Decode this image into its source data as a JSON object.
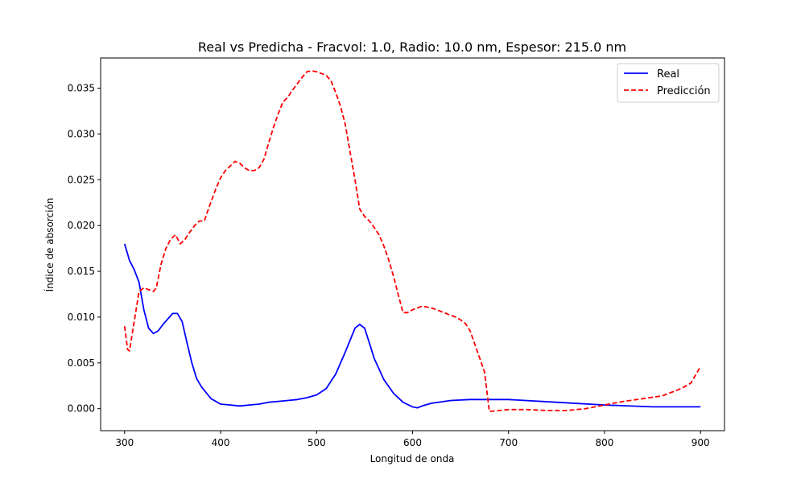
{
  "chart_data": {
    "type": "line",
    "title": "Real vs Predicha - Fracvol: 1.0, Radio: 10.0 nm, Espesor: 215.0 nm",
    "xlabel": "Longitud de onda",
    "ylabel": "Índice de absorción",
    "xlim": [
      275,
      925
    ],
    "ylim": [
      -0.0024,
      0.0383
    ],
    "xticks": [
      300,
      400,
      500,
      600,
      700,
      800,
      900
    ],
    "yticks": [
      0.0,
      0.005,
      0.01,
      0.015,
      0.02,
      0.025,
      0.03,
      0.035
    ],
    "xtick_labels": [
      "300",
      "400",
      "500",
      "600",
      "700",
      "800",
      "900"
    ],
    "ytick_labels": [
      "0.000",
      "0.005",
      "0.010",
      "0.015",
      "0.020",
      "0.025",
      "0.030",
      "0.035"
    ],
    "grid": false,
    "legend_position": "top-right",
    "series": [
      {
        "name": "Real",
        "color": "#0000ff",
        "style": "solid",
        "x": [
          300,
          305,
          310,
          315,
          320,
          325,
          330,
          335,
          340,
          345,
          350,
          355,
          360,
          365,
          370,
          375,
          380,
          390,
          400,
          410,
          420,
          430,
          440,
          450,
          460,
          470,
          480,
          490,
          500,
          510,
          520,
          530,
          540,
          545,
          550,
          555,
          560,
          570,
          580,
          590,
          600,
          605,
          610,
          620,
          640,
          660,
          680,
          700,
          750,
          800,
          850,
          900
        ],
        "y": [
          0.018,
          0.0162,
          0.0152,
          0.0138,
          0.0108,
          0.0088,
          0.0082,
          0.0085,
          0.0092,
          0.0098,
          0.0104,
          0.0104,
          0.0095,
          0.0072,
          0.005,
          0.0033,
          0.0024,
          0.0011,
          0.0005,
          0.0004,
          0.0003,
          0.0004,
          0.0005,
          0.0007,
          0.0008,
          0.0009,
          0.001,
          0.0012,
          0.0015,
          0.0022,
          0.0038,
          0.0062,
          0.0088,
          0.0092,
          0.0088,
          0.0072,
          0.0055,
          0.0032,
          0.0017,
          0.0007,
          0.0002,
          0.0001,
          0.0003,
          0.0006,
          0.0009,
          0.001,
          0.001,
          0.001,
          0.0007,
          0.0004,
          0.0002,
          0.0002
        ]
      },
      {
        "name": "Predicción",
        "color": "#ff0000",
        "style": "dashed",
        "x": [
          300,
          303,
          305,
          310,
          315,
          320,
          325,
          330,
          333,
          338,
          343,
          348,
          353,
          358,
          363,
          368,
          373,
          378,
          383,
          388,
          395,
          400,
          405,
          410,
          415,
          420,
          425,
          430,
          435,
          440,
          445,
          450,
          455,
          460,
          465,
          470,
          475,
          480,
          485,
          490,
          495,
          500,
          505,
          510,
          515,
          520,
          525,
          530,
          535,
          540,
          545,
          550,
          555,
          560,
          565,
          570,
          575,
          580,
          585,
          590,
          595,
          600,
          605,
          610,
          615,
          620,
          625,
          630,
          635,
          640,
          645,
          650,
          655,
          660,
          665,
          670,
          675,
          680,
          690,
          700,
          720,
          740,
          760,
          780,
          800,
          820,
          840,
          860,
          880,
          890,
          900
        ],
        "y": [
          0.009,
          0.0065,
          0.0063,
          0.0095,
          0.0128,
          0.0132,
          0.013,
          0.0128,
          0.0132,
          0.0158,
          0.0175,
          0.0185,
          0.019,
          0.018,
          0.0185,
          0.0193,
          0.02,
          0.0205,
          0.0205,
          0.022,
          0.024,
          0.0252,
          0.026,
          0.0265,
          0.027,
          0.0268,
          0.0263,
          0.026,
          0.026,
          0.0263,
          0.0272,
          0.029,
          0.0307,
          0.0322,
          0.0335,
          0.034,
          0.0348,
          0.0355,
          0.0362,
          0.0368,
          0.0369,
          0.0368,
          0.0366,
          0.0364,
          0.0358,
          0.0345,
          0.033,
          0.031,
          0.028,
          0.025,
          0.0218,
          0.021,
          0.0205,
          0.0198,
          0.019,
          0.0178,
          0.0163,
          0.0145,
          0.0125,
          0.0105,
          0.0105,
          0.0108,
          0.011,
          0.0112,
          0.0111,
          0.011,
          0.0108,
          0.0106,
          0.0104,
          0.0102,
          0.01,
          0.0097,
          0.0093,
          0.0085,
          0.007,
          0.0055,
          0.004,
          -0.0003,
          -0.0002,
          -0.0001,
          -0.0001,
          -0.0002,
          -0.0002,
          0.0,
          0.0004,
          0.0008,
          0.0011,
          0.0014,
          0.0022,
          0.0028,
          0.0046
        ]
      }
    ]
  }
}
